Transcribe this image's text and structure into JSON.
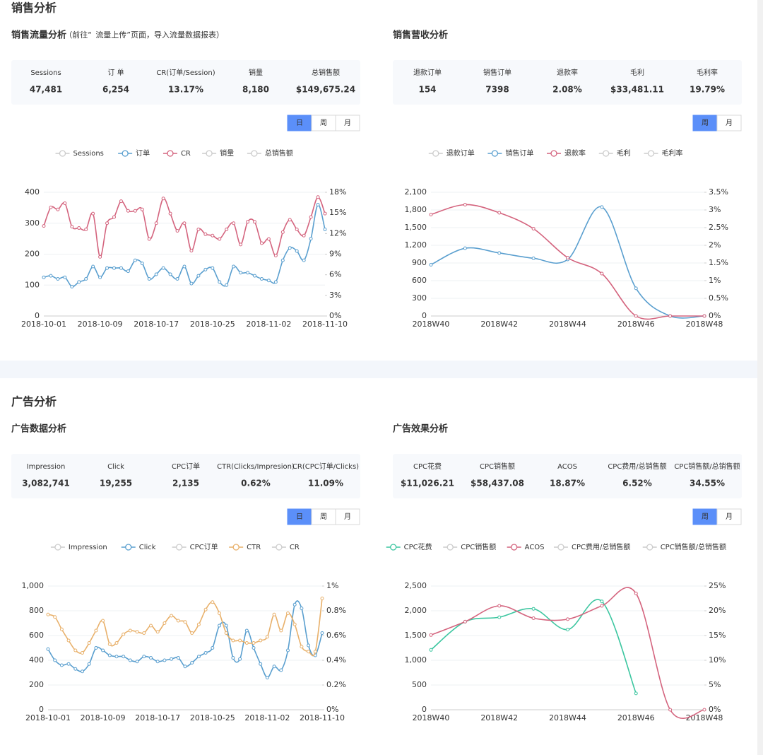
{
  "sections": [
    {
      "title": "销售分析",
      "panels": [
        {
          "title": "销售流量分析",
          "subtitle_prefix": "（前往“",
          "subtitle_link": "流量上传",
          "subtitle_suffix": "”页面，导入流量数据报表）",
          "stats": [
            {
              "label": "Sessions",
              "value": "47,481"
            },
            {
              "label": "订 单",
              "value": "6,254"
            },
            {
              "label": "CR(订单/Session)",
              "value": "13.17%"
            },
            {
              "label": "销量",
              "value": "8,180"
            },
            {
              "label": "总销售额",
              "value": "$149,675.24"
            }
          ],
          "toggles": [
            "日",
            "周",
            "月"
          ],
          "active_toggle": 0,
          "chart": {
            "type": "line",
            "categories": [
              "2018-10-01",
              null,
              null,
              null,
              null,
              null,
              null,
              null,
              "2018-10-09",
              null,
              null,
              null,
              null,
              null,
              null,
              null,
              "2018-10-17",
              null,
              null,
              null,
              null,
              null,
              null,
              null,
              "2018-10-25",
              null,
              null,
              null,
              null,
              null,
              null,
              null,
              "2018-11-02",
              null,
              null,
              null,
              null,
              null,
              null,
              null,
              "2018-11-10"
            ],
            "series": [
              {
                "name": "Sessions",
                "color": "#cccccc",
                "visible": false
              },
              {
                "name": "订单",
                "color": "#5a9fcf",
                "axis": "y",
                "values": [
                  125,
                  130,
                  120,
                  125,
                  95,
                  110,
                  120,
                  160,
                  125,
                  155,
                  155,
                  155,
                  145,
                  180,
                  170,
                  120,
                  135,
                  155,
                  135,
                  120,
                  160,
                  105,
                  130,
                  150,
                  155,
                  110,
                  100,
                  160,
                  140,
                  140,
                  130,
                  120,
                  115,
                  110,
                  180,
                  220,
                  210,
                  180,
                  250,
                  360,
                  280
                ]
              },
              {
                "name": "CR",
                "color": "#d4647e",
                "axis": "y2",
                "values": [
                  13.1,
                  15.8,
                  15.5,
                  16.4,
                  13.0,
                  12.8,
                  12.6,
                  14.9,
                  8.6,
                  13.5,
                  14.4,
                  16.7,
                  15.3,
                  15.3,
                  15.5,
                  11.2,
                  13.5,
                  17.1,
                  14.9,
                  12.4,
                  13.5,
                  9.5,
                  12.6,
                  11.9,
                  11.7,
                  11.2,
                  12.6,
                  13.5,
                  10.4,
                  13.7,
                  13.7,
                  10.6,
                  11.2,
                  8.8,
                  12.2,
                  14.0,
                  12.6,
                  11.7,
                  14.4,
                  17.3,
                  14.9
                ]
              },
              {
                "name": "销量",
                "color": "#cccccc",
                "visible": false
              },
              {
                "name": "总销售额",
                "color": "#cccccc",
                "visible": false
              }
            ],
            "ylim": [
              0,
              400
            ],
            "yticks": [
              0,
              100,
              200,
              300,
              400
            ],
            "y2lim": [
              0,
              18
            ],
            "y2ticks": [
              {
                "value": 0,
                "label": "0%"
              },
              {
                "value": 3,
                "label": "3%"
              },
              {
                "value": 6,
                "label": "6%"
              },
              {
                "value": 9,
                "label": "9%"
              },
              {
                "value": 12,
                "label": "12%"
              },
              {
                "value": 15,
                "label": "15%"
              },
              {
                "value": 18,
                "label": "18%"
              }
            ],
            "grid": true
          }
        },
        {
          "title": "销售营收分析",
          "stats": [
            {
              "label": "退款订单",
              "value": "154"
            },
            {
              "label": "销售订单",
              "value": "7398"
            },
            {
              "label": "退款率",
              "value": "2.08%"
            },
            {
              "label": "毛利",
              "value": "$33,481.11"
            },
            {
              "label": "毛利率",
              "value": "19.79%"
            }
          ],
          "toggles": [
            "周",
            "月"
          ],
          "active_toggle": 0,
          "chart": {
            "type": "line",
            "categories": [
              "2018W40",
              null,
              "2018W42",
              null,
              "2018W44",
              null,
              "2018W46",
              null,
              "2018W48"
            ],
            "series": [
              {
                "name": "退款订单",
                "color": "#cccccc",
                "visible": false
              },
              {
                "name": "销售订单",
                "color": "#5a9fcf",
                "axis": "y",
                "values": [
                  870,
                  1150,
                  1070,
                  980,
                  960,
                  1850,
                  470,
                  0,
                  0
                ]
              },
              {
                "name": "退款率",
                "color": "#d4647e",
                "axis": "y2",
                "values": [
                  2.87,
                  3.15,
                  2.92,
                  2.47,
                  1.65,
                  1.2,
                  0,
                  0,
                  0
                ]
              },
              {
                "name": "毛利",
                "color": "#cccccc",
                "visible": false
              },
              {
                "name": "毛利率",
                "color": "#cccccc",
                "visible": false
              }
            ],
            "ylim": [
              0,
              2100
            ],
            "yticks": [
              0,
              300,
              600,
              900,
              {
                "value": 1200,
                "label": "1,200"
              },
              {
                "value": 1500,
                "label": "1,500"
              },
              {
                "value": 1800,
                "label": "1,800"
              },
              {
                "value": 2100,
                "label": "2,100"
              }
            ],
            "y2lim": [
              0,
              3.5
            ],
            "y2ticks": [
              {
                "value": 0,
                "label": "0%"
              },
              {
                "value": 0.5,
                "label": "0.5%"
              },
              {
                "value": 1,
                "label": "1%"
              },
              {
                "value": 1.5,
                "label": "1.5%"
              },
              {
                "value": 2,
                "label": "2%"
              },
              {
                "value": 2.5,
                "label": "2.5%"
              },
              {
                "value": 3,
                "label": "3%"
              },
              {
                "value": 3.5,
                "label": "3.5%"
              }
            ],
            "grid": true
          }
        }
      ]
    },
    {
      "title": "广告分析",
      "panels": [
        {
          "title": "广告数据分析",
          "stats": [
            {
              "label": "Impression",
              "value": "3,082,741"
            },
            {
              "label": "Click",
              "value": "19,255"
            },
            {
              "label": "CPC订单",
              "value": "2,135"
            },
            {
              "label": "CTR(Clicks/Impresion)",
              "value": "0.62%"
            },
            {
              "label": "CR(CPC订单/Clicks)",
              "value": "11.09%"
            }
          ],
          "toggles": [
            "日",
            "周",
            "月"
          ],
          "active_toggle": 0,
          "chart": {
            "type": "line",
            "categories": [
              "2018-10-01",
              null,
              null,
              null,
              null,
              null,
              null,
              null,
              "2018-10-09",
              null,
              null,
              null,
              null,
              null,
              null,
              null,
              "2018-10-17",
              null,
              null,
              null,
              null,
              null,
              null,
              null,
              "2018-10-25",
              null,
              null,
              null,
              null,
              null,
              null,
              null,
              "2018-11-02",
              null,
              null,
              null,
              null,
              null,
              null,
              null,
              "2018-11-10"
            ],
            "series": [
              {
                "name": "Impression",
                "color": "#cccccc",
                "visible": false
              },
              {
                "name": "Click",
                "color": "#5a9fcf",
                "axis": "y",
                "values": [
                  490,
                  400,
                  360,
                  370,
                  330,
                  310,
                  370,
                  500,
                  480,
                  440,
                  430,
                  430,
                  400,
                  390,
                  430,
                  420,
                  390,
                  400,
                  410,
                  420,
                  350,
                  380,
                  430,
                  460,
                  500,
                  680,
                  680,
                  420,
                  410,
                  640,
                  500,
                  370,
                  260,
                  350,
                  320,
                  480,
                  850,
                  820,
                  520,
                  440,
                  620
                ]
              },
              {
                "name": "CPC订单",
                "color": "#cccccc",
                "visible": false
              },
              {
                "name": "CTR",
                "color": "#e8b06a",
                "axis": "y2",
                "values": [
                  0.77,
                  0.75,
                  0.65,
                  0.56,
                  0.48,
                  0.46,
                  0.54,
                  0.64,
                  0.72,
                  0.53,
                  0.54,
                  0.61,
                  0.64,
                  0.63,
                  0.62,
                  0.68,
                  0.63,
                  0.7,
                  0.76,
                  0.72,
                  0.71,
                  0.62,
                  0.69,
                  0.81,
                  0.87,
                  0.78,
                  0.62,
                  0.56,
                  0.56,
                  0.54,
                  0.54,
                  0.56,
                  0.59,
                  0.77,
                  0.64,
                  0.78,
                  0.69,
                  0.51,
                  0.47,
                  0.47,
                  0.9
                ]
              },
              {
                "name": "CR",
                "color": "#cccccc",
                "visible": false
              }
            ],
            "ylim": [
              0,
              1000
            ],
            "yticks": [
              0,
              200,
              400,
              600,
              800,
              {
                "value": 1000,
                "label": "1,000"
              }
            ],
            "y2lim": [
              0,
              1
            ],
            "y2ticks": [
              {
                "value": 0,
                "label": "0%"
              },
              {
                "value": 0.2,
                "label": "0.2%"
              },
              {
                "value": 0.4,
                "label": "0.4%"
              },
              {
                "value": 0.6,
                "label": "0.6%"
              },
              {
                "value": 0.8,
                "label": "0.8%"
              },
              {
                "value": 1,
                "label": "1%"
              }
            ],
            "grid": true
          }
        },
        {
          "title": "广告效果分析",
          "stats": [
            {
              "label": "CPC花费",
              "value": "$11,026.21"
            },
            {
              "label": "CPC销售额",
              "value": "$58,437.08"
            },
            {
              "label": "ACOS",
              "value": "18.87%"
            },
            {
              "label": "CPC费用/总销售额",
              "value": "6.52%"
            },
            {
              "label": "CPC销售额/总销售额",
              "value": "34.55%"
            }
          ],
          "toggles": [
            "周",
            "月"
          ],
          "active_toggle": 0,
          "chart": {
            "type": "line",
            "categories": [
              "2018W40",
              null,
              "2018W42",
              null,
              "2018W44",
              null,
              "2018W46",
              null,
              "2018W48"
            ],
            "series": [
              {
                "name": "CPC花费",
                "color": "#3cc6a0",
                "axis": "y",
                "values": [
                  1210,
                  1780,
                  1870,
                  2040,
                  1620,
                  2190,
                  330,
                  null,
                  null
                ]
              },
              {
                "name": "CPC销售额",
                "color": "#cccccc",
                "visible": false
              },
              {
                "name": "ACOS",
                "color": "#d4647e",
                "axis": "y2",
                "values": [
                  15.1,
                  17.8,
                  21,
                  18.5,
                  18.3,
                  21,
                  23.5,
                  0,
                  0
                ]
              },
              {
                "name": "CPC费用/总销售额",
                "color": "#cccccc",
                "visible": false
              },
              {
                "name": "CPC销售额/总销售额",
                "color": "#cccccc",
                "visible": false
              }
            ],
            "ylim": [
              0,
              2500
            ],
            "yticks": [
              0,
              500,
              {
                "value": 1000,
                "label": "1,000"
              },
              {
                "value": 1500,
                "label": "1,500"
              },
              {
                "value": 2000,
                "label": "2,000"
              },
              {
                "value": 2500,
                "label": "2,500"
              }
            ],
            "y2lim": [
              0,
              25
            ],
            "y2ticks": [
              {
                "value": 0,
                "label": "0%"
              },
              {
                "value": 5,
                "label": "5%"
              },
              {
                "value": 10,
                "label": "10%"
              },
              {
                "value": 15,
                "label": "15%"
              },
              {
                "value": 20,
                "label": "20%"
              },
              {
                "value": 25,
                "label": "25%"
              }
            ],
            "grid": true
          }
        }
      ]
    }
  ]
}
